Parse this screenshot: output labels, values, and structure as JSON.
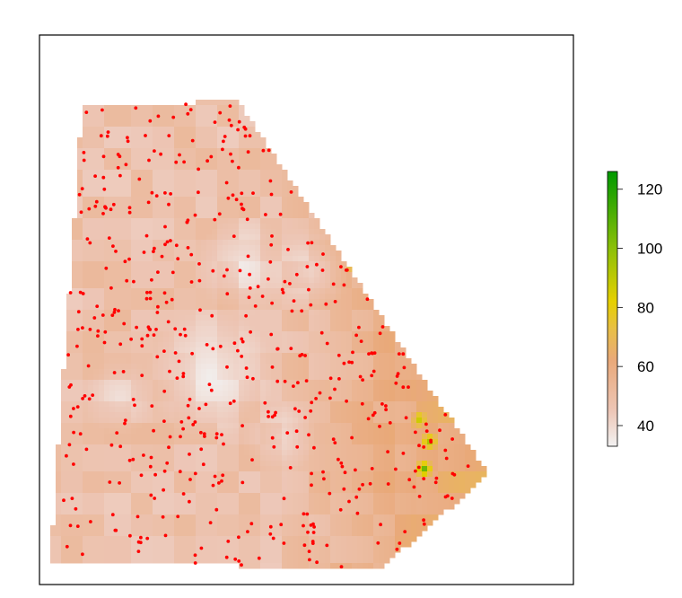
{
  "chart_data": {
    "type": "heatmap",
    "title": "",
    "xlabel": "",
    "ylabel": "",
    "colorbar": {
      "range": [
        33,
        126
      ],
      "ticks": [
        40,
        60,
        80,
        100,
        120
      ],
      "tick_labels": [
        "40",
        "60",
        "80",
        "100",
        "120"
      ],
      "color_stops": [
        {
          "value": 33,
          "color": "#F2F2F2"
        },
        {
          "value": 45,
          "color": "#EDC6B6"
        },
        {
          "value": 62,
          "color": "#E9A97A"
        },
        {
          "value": 72,
          "color": "#E8BE4A"
        },
        {
          "value": 82,
          "color": "#E6D000"
        },
        {
          "value": 100,
          "color": "#8CC008"
        },
        {
          "value": 126,
          "color": "#009900"
        }
      ]
    },
    "raster_surface": {
      "boundary": [
        [
          0.08,
          0.13
        ],
        [
          0.37,
          0.12
        ],
        [
          0.84,
          0.8
        ],
        [
          0.64,
          0.97
        ],
        [
          0.02,
          0.96
        ]
      ],
      "base_value": 48,
      "gradient": "value increases toward the east edge (about 66-75)",
      "low_patches": [
        {
          "center": [
            0.32,
            0.62
          ],
          "radius": 0.12,
          "value": 36
        },
        {
          "center": [
            0.38,
            0.42
          ],
          "radius": 0.09,
          "value": 38
        },
        {
          "center": [
            0.5,
            0.43
          ],
          "radius": 0.08,
          "value": 38
        },
        {
          "center": [
            0.15,
            0.66
          ],
          "radius": 0.07,
          "value": 40
        },
        {
          "center": [
            0.45,
            0.73
          ],
          "radius": 0.07,
          "value": 39
        }
      ],
      "high_spots": [
        {
          "center": [
            0.72,
            0.79
          ],
          "value": 110
        },
        {
          "center": [
            0.71,
            0.7
          ],
          "value": 86
        },
        {
          "center": [
            0.73,
            0.74
          ],
          "value": 96
        },
        {
          "center": [
            0.59,
            0.42
          ],
          "value": 92
        }
      ]
    },
    "points": {
      "color": "#FF0000",
      "count": 520,
      "description": "sample locations scattered over the raster surface"
    }
  }
}
